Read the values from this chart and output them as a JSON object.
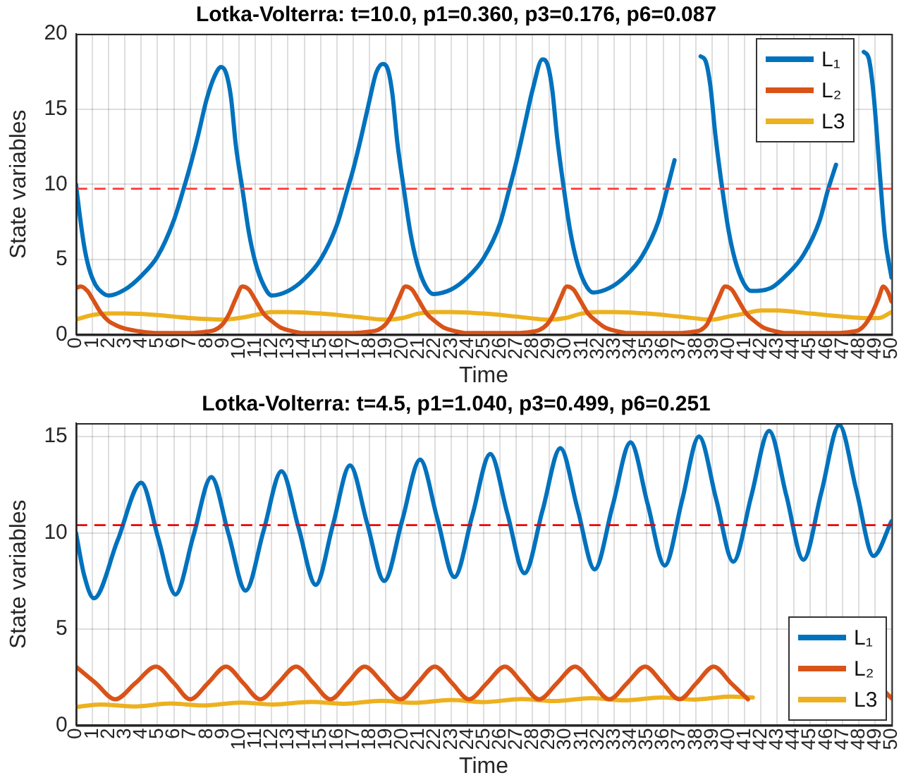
{
  "chart_data": [
    {
      "type": "line",
      "title": "Lotka-Volterra: t=10.0, p1=0.360, p3=0.176, p6=0.087",
      "xlabel": "Time",
      "ylabel": "State variables",
      "xlim": [
        0,
        50
      ],
      "xticks": [
        0,
        1,
        2,
        3,
        4,
        5,
        6,
        7,
        8,
        9,
        10,
        11,
        12,
        13,
        14,
        15,
        16,
        17,
        18,
        19,
        20,
        21,
        22,
        23,
        24,
        25,
        26,
        27,
        28,
        29,
        30,
        31,
        32,
        33,
        34,
        35,
        36,
        37,
        38,
        39,
        40,
        41,
        42,
        43,
        44,
        45,
        46,
        47,
        48,
        49,
        50
      ],
      "ylim": [
        0,
        20
      ],
      "yticks": [
        0,
        5,
        10,
        15,
        20
      ],
      "grid": true,
      "legend": "top right",
      "marker": "none",
      "line_style": "solid",
      "ref_lines": [
        {
          "axis": "y",
          "value": 9.7,
          "color": "#ff3b3b",
          "line_style": "dashed"
        }
      ],
      "series": [
        {
          "name": "L₁",
          "color": "#0072bd",
          "x": [
            0,
            0.2,
            0.5,
            0.8,
            1.2,
            1.6,
            2.0,
            3,
            4,
            5,
            6,
            6.6,
            7,
            7.5,
            8,
            8.5,
            8.9,
            9.2,
            9.5,
            9.8,
            10.2,
            10.6,
            11,
            11.5,
            12.0,
            13,
            14,
            15,
            16,
            16.6,
            17,
            17.5,
            18,
            18.4,
            18.8,
            19.1,
            19.4,
            19.7,
            20.1,
            20.5,
            20.9,
            21.4,
            21.9,
            23,
            24,
            25,
            26,
            26.5,
            27,
            27.5,
            28,
            28.6,
            28.9,
            29.2,
            29.5,
            29.9,
            30.3,
            30.7,
            31.2,
            31.7,
            32.7,
            33.7,
            34.7,
            35.7,
            36.2,
            36.7,
            37.2,
            37.7,
            38.3,
            38.6,
            38.9,
            39.2,
            39.6,
            40,
            40.4,
            40.9,
            41.4,
            42.6,
            43.6,
            44.6,
            45.6,
            46.1,
            46.6,
            47.1,
            47.6,
            48.3,
            48.6,
            48.9,
            49.3,
            49.6,
            50
          ],
          "values": [
            10,
            8.2,
            5.9,
            4.4,
            3.3,
            2.8,
            2.6,
            3.0,
            3.9,
            5.2,
            7.6,
            9.7,
            11.2,
            13.3,
            15.6,
            17.2,
            17.8,
            17.4,
            15.8,
            12.6,
            9.7,
            6.8,
            4.8,
            3.3,
            2.6,
            2.9,
            3.7,
            5.0,
            7.3,
            9.5,
            11.0,
            13.2,
            15.6,
            17.4,
            18.0,
            17.7,
            16.0,
            12.8,
            9.7,
            6.8,
            4.8,
            3.3,
            2.7,
            3.0,
            3.8,
            5.1,
            7.4,
            9.4,
            11.5,
            13.9,
            16.3,
            18.3,
            18.0,
            16.3,
            13.1,
            9.8,
            6.9,
            4.9,
            3.4,
            2.8,
            3.1,
            3.9,
            5.2,
            7.5,
            9.5,
            11.6,
            null,
            null,
            18.5,
            18.2,
            16.5,
            13.3,
            9.9,
            7.0,
            5.0,
            3.5,
            2.9,
            3.1,
            4.0,
            5.3,
            7.6,
            9.6,
            11.3,
            null,
            null,
            18.8,
            18.4,
            16.0,
            10.5,
            6.5,
            3.8
          ]
        },
        {
          "name": "L₂",
          "color": "#d95319",
          "x": [
            0,
            0.3,
            0.7,
            1.0,
            1.5,
            2.0,
            2.5,
            3,
            4,
            5,
            6,
            7,
            8,
            8.5,
            9,
            9.4,
            9.8,
            10.2,
            10.6,
            11,
            11.5,
            12,
            12.5,
            13,
            14,
            15,
            16,
            17,
            18,
            18.5,
            19,
            19.4,
            19.8,
            20.2,
            20.6,
            21,
            21.5,
            22,
            22.5,
            23,
            24,
            25,
            26,
            27,
            28,
            28.4,
            28.9,
            29.3,
            29.7,
            30.1,
            30.5,
            30.9,
            31.4,
            31.9,
            32.4,
            32.9,
            33.9,
            34.9,
            35.9,
            36.9,
            37.9,
            38.3,
            38.7,
            39.0,
            39.4,
            39.8,
            40.2,
            40.6,
            41.1,
            41.6,
            42.1,
            42.6,
            43.6,
            44.6,
            45.6,
            46.6,
            47.6,
            48.0,
            48.4,
            48.8,
            49.2,
            49.5,
            49.8,
            50
          ],
          "values": [
            3.1,
            3.2,
            2.9,
            2.4,
            1.5,
            0.9,
            0.6,
            0.4,
            0.2,
            0.1,
            0.1,
            0.1,
            0.2,
            0.3,
            0.7,
            1.4,
            2.4,
            3.2,
            3.0,
            2.3,
            1.4,
            0.9,
            0.5,
            0.3,
            0.1,
            0.1,
            0.1,
            0.1,
            0.2,
            0.3,
            0.7,
            1.4,
            2.4,
            3.2,
            3.0,
            2.3,
            1.4,
            0.9,
            0.5,
            0.3,
            0.1,
            0.1,
            0.1,
            0.1,
            0.2,
            0.3,
            0.7,
            1.4,
            2.4,
            3.2,
            3.0,
            2.3,
            1.4,
            0.9,
            0.5,
            0.3,
            0.1,
            0.1,
            0.1,
            0.1,
            0.2,
            0.3,
            0.7,
            1.4,
            2.4,
            3.2,
            3.0,
            2.3,
            1.4,
            0.9,
            0.5,
            0.3,
            0.1,
            0.1,
            0.1,
            0.1,
            0.2,
            0.3,
            0.7,
            1.4,
            2.4,
            3.2,
            2.8,
            2.2
          ]
        },
        {
          "name": "L3",
          "color": "#edb120",
          "x": [
            0,
            1,
            2,
            3,
            5,
            7,
            9,
            10,
            11,
            12,
            13,
            15,
            17,
            19,
            20,
            21,
            22,
            23,
            25,
            27,
            29,
            30,
            31,
            32,
            33,
            35,
            37,
            39,
            40,
            41,
            42,
            43,
            45,
            47,
            48.5,
            49.2,
            50
          ],
          "values": [
            1.0,
            1.3,
            1.4,
            1.4,
            1.3,
            1.1,
            1.0,
            1.1,
            1.3,
            1.5,
            1.5,
            1.4,
            1.2,
            1.0,
            1.1,
            1.4,
            1.5,
            1.5,
            1.4,
            1.2,
            1.0,
            1.1,
            1.4,
            1.5,
            1.5,
            1.4,
            1.2,
            1.0,
            1.2,
            1.4,
            1.6,
            1.6,
            1.4,
            1.2,
            1.1,
            1.1,
            1.5
          ]
        }
      ]
    },
    {
      "type": "line",
      "title": "Lotka-Volterra: t=4.5, p1=1.040, p3=0.499, p6=0.251",
      "xlabel": "Time",
      "ylabel": "State variables",
      "xlim": [
        0,
        50
      ],
      "xticks": [
        0,
        1,
        2,
        3,
        4,
        5,
        6,
        7,
        8,
        9,
        10,
        11,
        12,
        13,
        14,
        15,
        16,
        17,
        18,
        19,
        20,
        21,
        22,
        23,
        24,
        25,
        26,
        27,
        28,
        29,
        30,
        31,
        32,
        33,
        34,
        35,
        36,
        37,
        38,
        39,
        40,
        41,
        42,
        43,
        44,
        45,
        46,
        47,
        48,
        49,
        50
      ],
      "ylim": [
        0,
        15.7
      ],
      "yticks": [
        0,
        5,
        10,
        15
      ],
      "grid": true,
      "legend": "bottom right",
      "marker": "none",
      "line_style": "solid",
      "ref_lines": [
        {
          "axis": "y",
          "value": 10.4,
          "color": "#ee0000",
          "line_style": "dashed"
        }
      ],
      "series": [
        {
          "name": "L₁",
          "color": "#0072bd",
          "x": [
            0,
            0.5,
            1.1,
            2.55,
            4.0,
            5.05,
            6.1,
            7.2,
            8.3,
            9.35,
            10.4,
            11.5,
            12.6,
            13.65,
            14.7,
            15.75,
            16.8,
            17.85,
            18.9,
            20.0,
            21.1,
            22.15,
            23.2,
            24.3,
            25.4,
            26.45,
            27.5,
            28.6,
            29.7,
            30.75,
            31.8,
            32.9,
            34.0,
            35.05,
            36.1,
            37.15,
            38.2,
            39.25,
            40.3,
            41.4,
            42.5,
            43.55,
            44.6,
            45.7,
            46.8,
            47.85,
            48.9,
            50
          ],
          "values": [
            10.0,
            7.8,
            6.6,
            9.6,
            12.6,
            9.7,
            6.8,
            9.85,
            12.9,
            9.95,
            7.0,
            10.1,
            13.2,
            10.25,
            7.3,
            10.4,
            13.5,
            10.5,
            7.5,
            10.65,
            13.8,
            10.75,
            7.7,
            10.9,
            14.1,
            11.0,
            7.9,
            11.15,
            14.4,
            11.25,
            8.1,
            11.4,
            14.7,
            11.5,
            8.3,
            11.65,
            15.0,
            11.75,
            8.5,
            11.9,
            15.3,
            11.95,
            8.6,
            12.1,
            15.6,
            12.2,
            8.8,
            10.6
          ]
        },
        {
          "name": "L₂",
          "color": "#d95319",
          "x": [
            0,
            1.2,
            2.4,
            3.65,
            4.9,
            6.0,
            7.0,
            8.1,
            9.2,
            10.25,
            11.3,
            12.4,
            13.5,
            14.55,
            15.6,
            16.65,
            17.7,
            18.8,
            19.9,
            20.95,
            22.0,
            23.05,
            24.1,
            25.2,
            26.3,
            27.35,
            28.4,
            29.5,
            30.6,
            31.65,
            32.7,
            33.8,
            34.9,
            35.95,
            37.0,
            38.05,
            39.1,
            40.15,
            41.2,
            43.4,
            45.5,
            47.7,
            49.6,
            50
          ],
          "values": [
            3.05,
            2.2,
            1.35,
            2.2,
            3.05,
            2.2,
            1.35,
            2.2,
            3.05,
            2.2,
            1.35,
            2.2,
            3.05,
            2.2,
            1.35,
            2.2,
            3.05,
            2.2,
            1.35,
            2.2,
            3.05,
            2.2,
            1.35,
            2.2,
            3.05,
            2.2,
            1.35,
            2.2,
            3.05,
            2.2,
            1.35,
            2.2,
            3.05,
            2.2,
            1.35,
            2.2,
            3.05,
            2.2,
            1.35,
            null,
            null,
            null,
            1.75,
            1.4
          ]
        },
        {
          "name": "L3",
          "color": "#edb120",
          "x": [
            0,
            1.5,
            3.5,
            5.8,
            7.8,
            10.1,
            12.1,
            14.4,
            16.4,
            18.7,
            20.7,
            23.0,
            25.0,
            27.3,
            29.3,
            31.6,
            33.6,
            35.9,
            37.9,
            40.1,
            41.5,
            43,
            46,
            49.6,
            50
          ],
          "values": [
            0.95,
            1.08,
            0.98,
            1.13,
            1.03,
            1.18,
            1.08,
            1.22,
            1.12,
            1.27,
            1.17,
            1.32,
            1.21,
            1.36,
            1.26,
            1.41,
            1.3,
            1.45,
            1.34,
            1.49,
            1.45,
            null,
            null,
            1.55,
            1.5
          ]
        }
      ]
    }
  ]
}
